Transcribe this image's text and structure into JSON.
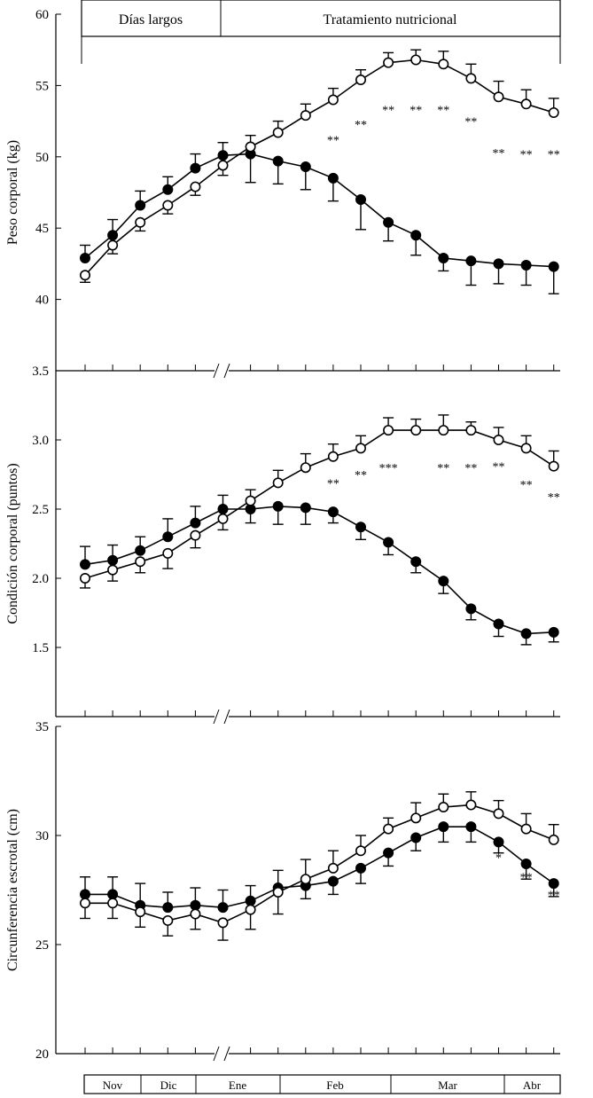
{
  "chart_data": {
    "type": "line",
    "phases": [
      {
        "label": "Días largos"
      },
      {
        "label": "Tratamiento nutricional"
      }
    ],
    "months": [
      {
        "label": "Nov"
      },
      {
        "label": "Dic"
      },
      {
        "label": "Ene"
      },
      {
        "label": "Feb"
      },
      {
        "label": "Mar"
      },
      {
        "label": "Abr"
      }
    ],
    "panels": [
      {
        "ylabel": "Peso corporal (kg)",
        "ylim": [
          35,
          60
        ],
        "yticks": [
          "40",
          "45",
          "50",
          "55",
          "60"
        ],
        "bottom_label": "3.5",
        "series": [
          {
            "name": "filled",
            "fill": "#000000",
            "values": [
              42.9,
              44.5,
              46.6,
              47.7,
              49.2,
              50.1,
              50.2,
              49.7,
              49.3,
              48.5,
              47.0,
              45.4,
              44.5,
              42.9,
              42.7,
              42.5,
              42.4,
              42.3
            ],
            "errors": [
              0.9,
              1.1,
              1.0,
              0.9,
              1.0,
              0.9,
              2.0,
              1.6,
              1.6,
              1.6,
              2.1,
              1.3,
              1.4,
              0.9,
              1.7,
              1.4,
              1.4,
              1.9
            ]
          },
          {
            "name": "open",
            "fill": "#ffffff",
            "values": [
              41.7,
              43.8,
              45.4,
              46.6,
              47.9,
              49.4,
              50.7,
              51.7,
              52.9,
              54.0,
              55.4,
              56.6,
              56.8,
              56.5,
              55.5,
              54.2,
              53.7,
              53.1
            ],
            "errors": [
              0.5,
              0.6,
              0.6,
              0.6,
              0.6,
              0.7,
              0.8,
              0.8,
              0.8,
              0.8,
              0.7,
              0.7,
              0.7,
              0.9,
              1.0,
              1.1,
              1.0,
              1.0
            ]
          }
        ],
        "annotations": [
          {
            "i": 9,
            "text": "**",
            "y": 51.2
          },
          {
            "i": 10,
            "text": "**",
            "y": 52.3
          },
          {
            "i": 11,
            "text": "**",
            "y": 53.3
          },
          {
            "i": 12,
            "text": "**",
            "y": 53.3
          },
          {
            "i": 13,
            "text": "**",
            "y": 53.3
          },
          {
            "i": 14,
            "text": "**",
            "y": 52.5
          },
          {
            "i": 15,
            "text": "**",
            "y": 50.3
          },
          {
            "i": 16,
            "text": "**",
            "y": 50.2
          },
          {
            "i": 17,
            "text": "**",
            "y": 50.2
          }
        ]
      },
      {
        "ylabel": "Condición corporal (puntos)",
        "ylim": [
          1.0,
          3.5
        ],
        "yticks": [
          "1.5",
          "2.0",
          "2.5",
          "3.0"
        ],
        "bottom_label": "",
        "series": [
          {
            "name": "filled",
            "fill": "#000000",
            "values": [
              2.1,
              2.13,
              2.2,
              2.3,
              2.4,
              2.5,
              2.5,
              2.52,
              2.51,
              2.48,
              2.37,
              2.26,
              2.12,
              1.98,
              1.78,
              1.67,
              1.6,
              1.61
            ],
            "errors": [
              0.13,
              0.11,
              0.1,
              0.13,
              0.12,
              0.1,
              0.1,
              0.13,
              0.12,
              0.08,
              0.09,
              0.09,
              0.08,
              0.09,
              0.08,
              0.09,
              0.08,
              0.07
            ]
          },
          {
            "name": "open",
            "fill": "#ffffff",
            "values": [
              2.0,
              2.06,
              2.12,
              2.18,
              2.31,
              2.43,
              2.56,
              2.69,
              2.8,
              2.88,
              2.94,
              3.07,
              3.07,
              3.07,
              3.07,
              3.0,
              2.94,
              2.81
            ],
            "errors": [
              0.07,
              0.08,
              0.08,
              0.11,
              0.09,
              0.08,
              0.08,
              0.09,
              0.1,
              0.09,
              0.09,
              0.09,
              0.08,
              0.11,
              0.06,
              0.09,
              0.09,
              0.11
            ]
          }
        ],
        "annotations": [
          {
            "i": 9,
            "text": "**",
            "y": 2.69
          },
          {
            "i": 10,
            "text": "**",
            "y": 2.75
          },
          {
            "i": 11,
            "text": "***",
            "y": 2.8
          },
          {
            "i": 13,
            "text": "**",
            "y": 2.8
          },
          {
            "i": 14,
            "text": "**",
            "y": 2.8
          },
          {
            "i": 15,
            "text": "**",
            "y": 2.81
          },
          {
            "i": 16,
            "text": "**",
            "y": 2.68
          },
          {
            "i": 17,
            "text": "**",
            "y": 2.59
          }
        ]
      },
      {
        "ylabel": "Circunferencia escrotal (cm)",
        "ylim": [
          20,
          35
        ],
        "yticks": [
          "20",
          "25",
          "30",
          "35"
        ],
        "bottom_label": "",
        "series": [
          {
            "name": "filled",
            "fill": "#000000",
            "values": [
              27.3,
              27.3,
              26.8,
              26.7,
              26.8,
              26.7,
              27.0,
              27.6,
              27.7,
              27.9,
              28.5,
              29.2,
              29.9,
              30.4,
              30.4,
              29.7,
              28.7,
              27.8
            ],
            "errors": [
              0.8,
              0.8,
              1.0,
              0.7,
              0.8,
              0.8,
              0.7,
              0.8,
              0.6,
              0.6,
              0.7,
              0.6,
              0.6,
              0.7,
              0.7,
              0.5,
              0.7,
              0.6
            ]
          },
          {
            "name": "open",
            "fill": "#ffffff",
            "values": [
              26.9,
              26.9,
              26.5,
              26.1,
              26.4,
              26.0,
              26.6,
              27.4,
              28.0,
              28.5,
              29.3,
              30.3,
              30.8,
              31.3,
              31.4,
              31.0,
              30.3,
              29.8
            ],
            "errors": [
              0.7,
              0.7,
              0.7,
              0.7,
              0.7,
              0.8,
              0.9,
              1.0,
              0.9,
              0.8,
              0.7,
              0.5,
              0.7,
              0.6,
              0.6,
              0.6,
              0.7,
              0.7
            ]
          }
        ],
        "annotations": [
          {
            "i": 15,
            "text": "*",
            "y": 29.0
          },
          {
            "i": 16,
            "text": "**",
            "y": 28.1
          },
          {
            "i": 17,
            "text": "**",
            "y": 27.3
          }
        ]
      }
    ]
  }
}
